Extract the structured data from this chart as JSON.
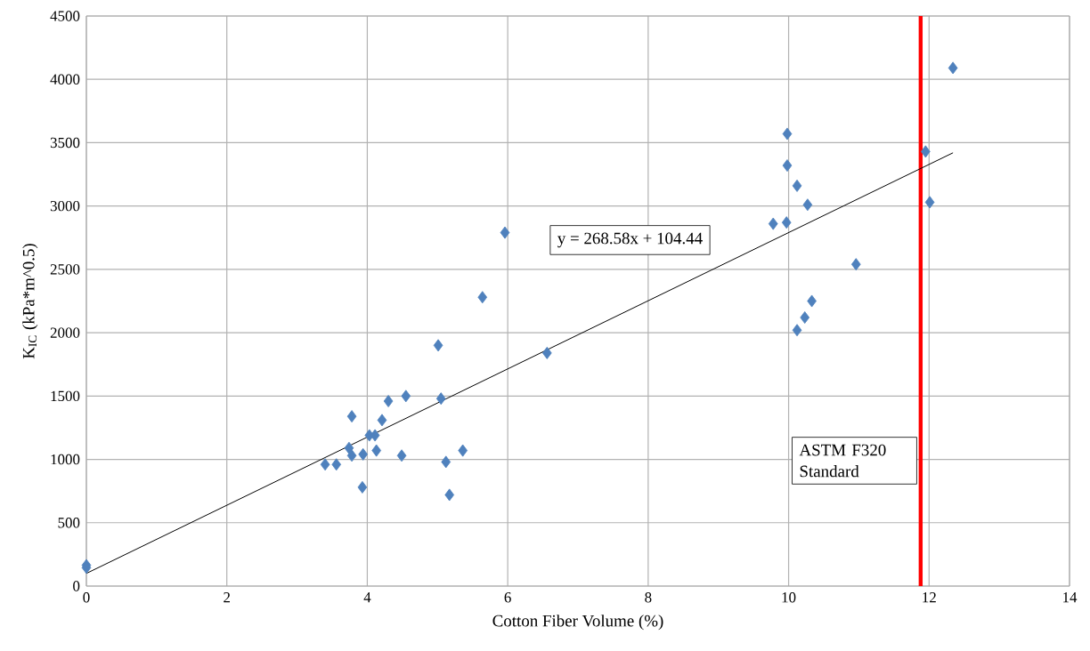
{
  "chart_data": {
    "type": "scatter",
    "xlabel": "Cotton Fiber Volume (%)",
    "ylabel": "K$_{IC}$ (kPa*m^0.5)",
    "xlim": [
      0,
      14
    ],
    "ylim": [
      0,
      4500
    ],
    "xticks": [
      0,
      2,
      4,
      6,
      8,
      10,
      12,
      14
    ],
    "yticks": [
      0,
      500,
      1000,
      1500,
      2000,
      2500,
      3000,
      3500,
      4000,
      4500
    ],
    "grid": true,
    "marker": "diamond",
    "series": [
      {
        "color": "#4f81bd",
        "x": [
          0,
          0,
          3.4,
          3.56,
          3.74,
          3.78,
          3.78,
          3.94,
          3.93,
          4.03,
          4.11,
          4.13,
          4.21,
          4.3,
          4.55,
          4.49,
          5.05,
          5.12,
          5.17,
          5.36,
          5.96,
          5.64,
          5.01,
          6.56,
          9.98,
          9.98,
          10.12,
          10.27,
          9.78,
          9.97,
          10.96,
          10.33,
          10.23,
          10.12,
          11.95,
          12.01,
          12.34
        ],
        "values": [
          165,
          145,
          960,
          960,
          1090,
          1030,
          1340,
          1040,
          780,
          1190,
          1190,
          1070,
          1310,
          1460,
          1500,
          1030,
          1480,
          980,
          720,
          1070,
          2790,
          2280,
          1900,
          1840,
          3570,
          3320,
          3160,
          3010,
          2860,
          2870,
          2540,
          2250,
          2120,
          2020,
          3430,
          3030,
          4090
        ]
      },
      {
        "type": "line",
        "marker": "none",
        "color": "#000000",
        "x": [
          0,
          12.34
        ],
        "values": [
          100,
          3420
        ]
      }
    ],
    "ref_lines": [
      {
        "axis": "x",
        "value": 11.88,
        "label": "ASTM F320 Standard",
        "color": "#ff0000"
      }
    ],
    "annotations": [
      "y = 268.58x + 104.44"
    ]
  }
}
